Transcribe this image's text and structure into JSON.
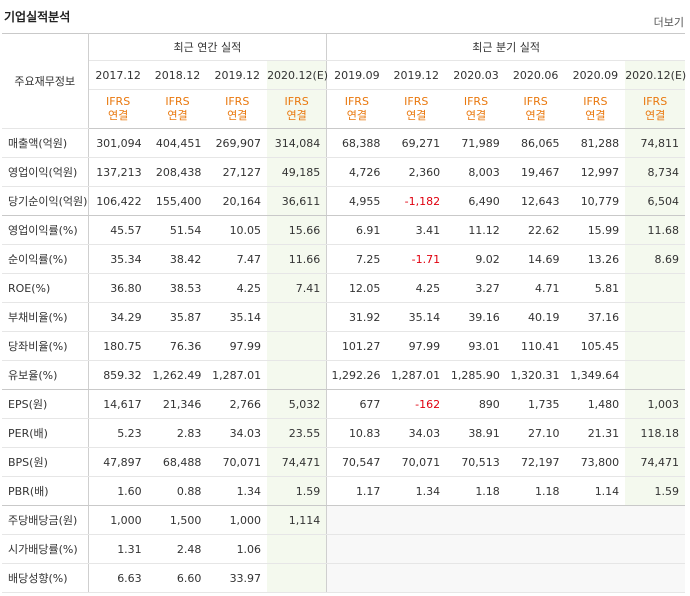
{
  "header": {
    "title": "기업실적분석",
    "more": "더보기"
  },
  "table": {
    "corner": "주요재무정보",
    "groups": [
      "최근 연간 실적",
      "최근 분기 실적"
    ],
    "periods": [
      "2017.12",
      "2018.12",
      "2019.12",
      "2020.12(E)",
      "2019.09",
      "2019.12",
      "2020.03",
      "2020.06",
      "2020.09",
      "2020.12(E)"
    ],
    "standard": [
      "IFRS",
      "연결"
    ],
    "rows": [
      {
        "label": "매출액(억원)",
        "values": [
          "301,094",
          "404,451",
          "269,907",
          "314,084",
          "68,388",
          "69,271",
          "71,989",
          "86,065",
          "81,288",
          "74,811"
        ]
      },
      {
        "label": "영업이익(억원)",
        "values": [
          "137,213",
          "208,438",
          "27,127",
          "49,185",
          "4,726",
          "2,360",
          "8,003",
          "19,467",
          "12,997",
          "8,734"
        ]
      },
      {
        "label": "당기순이익(억원)",
        "values": [
          "106,422",
          "155,400",
          "20,164",
          "36,611",
          "4,955",
          "-1,182",
          "6,490",
          "12,643",
          "10,779",
          "6,504"
        ]
      },
      {
        "label": "영업이익률(%)",
        "values": [
          "45.57",
          "51.54",
          "10.05",
          "15.66",
          "6.91",
          "3.41",
          "11.12",
          "22.62",
          "15.99",
          "11.68"
        ]
      },
      {
        "label": "순이익률(%)",
        "values": [
          "35.34",
          "38.42",
          "7.47",
          "11.66",
          "7.25",
          "-1.71",
          "9.02",
          "14.69",
          "13.26",
          "8.69"
        ]
      },
      {
        "label": "ROE(%)",
        "values": [
          "36.80",
          "38.53",
          "4.25",
          "7.41",
          "12.05",
          "4.25",
          "3.27",
          "4.71",
          "5.81",
          null
        ]
      },
      {
        "label": "부채비율(%)",
        "values": [
          "34.29",
          "35.87",
          "35.14",
          null,
          "31.92",
          "35.14",
          "39.16",
          "40.19",
          "37.16",
          null
        ]
      },
      {
        "label": "당좌비율(%)",
        "values": [
          "180.75",
          "76.36",
          "97.99",
          null,
          "101.27",
          "97.99",
          "93.01",
          "110.41",
          "105.45",
          null
        ]
      },
      {
        "label": "유보율(%)",
        "values": [
          "859.32",
          "1,262.49",
          "1,287.01",
          null,
          "1,292.26",
          "1,287.01",
          "1,285.90",
          "1,320.31",
          "1,349.64",
          null
        ]
      },
      {
        "label": "EPS(원)",
        "values": [
          "14,617",
          "21,346",
          "2,766",
          "5,032",
          "677",
          "-162",
          "890",
          "1,735",
          "1,480",
          "1,003"
        ]
      },
      {
        "label": "PER(배)",
        "values": [
          "5.23",
          "2.83",
          "34.03",
          "23.55",
          "10.83",
          "34.03",
          "38.91",
          "27.10",
          "21.31",
          "118.18"
        ]
      },
      {
        "label": "BPS(원)",
        "values": [
          "47,897",
          "68,488",
          "70,071",
          "74,471",
          "70,547",
          "70,071",
          "70,513",
          "72,197",
          "73,800",
          "74,471"
        ]
      },
      {
        "label": "PBR(배)",
        "values": [
          "1.60",
          "0.88",
          "1.34",
          "1.59",
          "1.17",
          "1.34",
          "1.18",
          "1.18",
          "1.14",
          "1.59"
        ]
      },
      {
        "label": "주당배당금(원)",
        "values": [
          "1,000",
          "1,500",
          "1,000",
          "1,114",
          null,
          null,
          null,
          null,
          null,
          null
        ]
      },
      {
        "label": "시가배당률(%)",
        "values": [
          "1.31",
          "2.48",
          "1.06",
          null,
          null,
          null,
          null,
          null,
          null,
          null
        ]
      },
      {
        "label": "배당성향(%)",
        "values": [
          "6.63",
          "6.60",
          "33.97",
          null,
          null,
          null,
          null,
          null,
          null,
          null
        ]
      }
    ]
  }
}
